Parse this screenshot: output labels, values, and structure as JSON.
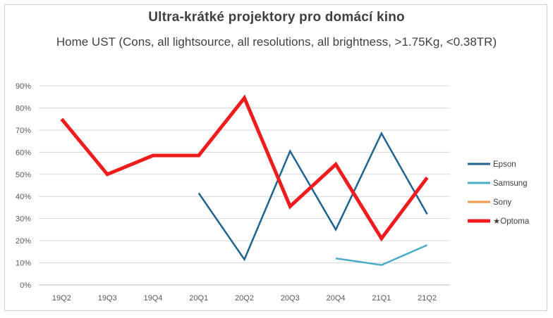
{
  "chart_data": {
    "type": "line",
    "title": "Ultra-krátké projektory pro domácí kino",
    "subtitle": "Home UST (Cons, all lightsource, all resolutions, all brightness, >1.75Kg, <0.38TR)",
    "xlabel": "",
    "ylabel": "",
    "categories": [
      "19Q2",
      "19Q3",
      "19Q4",
      "20Q1",
      "20Q2",
      "20Q3",
      "20Q4",
      "21Q1",
      "21Q2"
    ],
    "ylim": [
      0,
      90
    ],
    "yticks": [
      "0%",
      "10%",
      "20%",
      "30%",
      "40%",
      "50%",
      "60%",
      "70%",
      "80%",
      "90%"
    ],
    "grid": true,
    "legend_position": "right",
    "series": [
      {
        "name": "Epson",
        "color": "#1f6391",
        "values": [
          null,
          null,
          null,
          41.5,
          11.5,
          60.5,
          25,
          68.5,
          32
        ]
      },
      {
        "name": "Samsung",
        "color": "#4bacc6",
        "values": [
          null,
          null,
          null,
          null,
          null,
          null,
          12,
          9,
          18
        ]
      },
      {
        "name": "Sony",
        "color": "#f79646",
        "values": [
          null,
          null,
          null,
          null,
          null,
          null,
          null,
          null,
          null
        ]
      },
      {
        "name": "★Optoma",
        "color": "#ee1c1c",
        "values": [
          75,
          50,
          58.5,
          58.5,
          84.5,
          35.5,
          54.5,
          21,
          48.5
        ]
      }
    ]
  }
}
